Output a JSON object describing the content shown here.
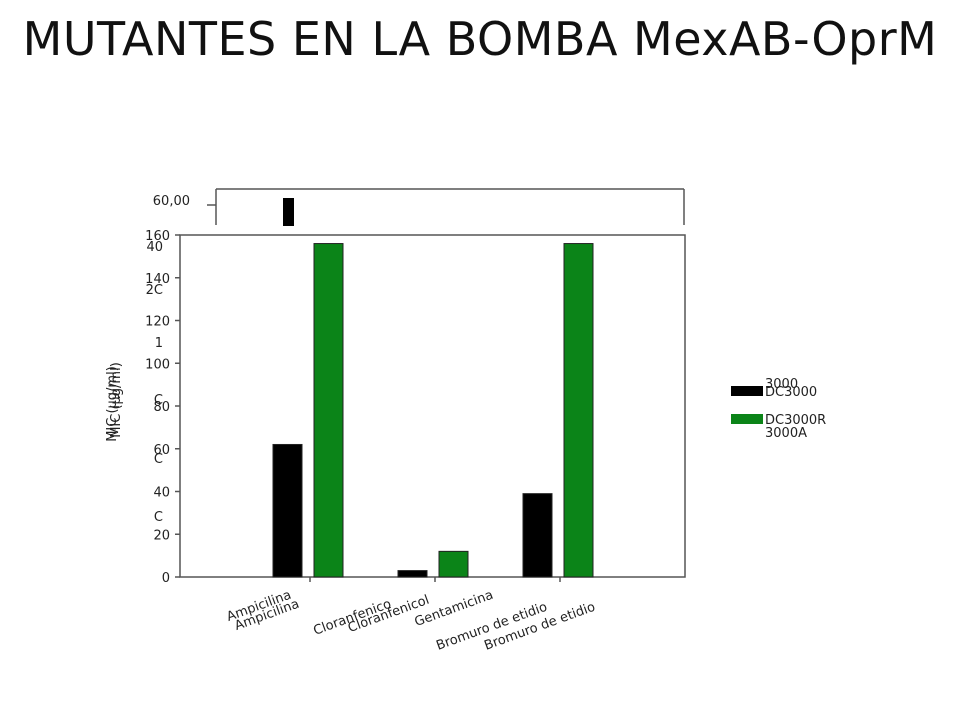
{
  "slide": {
    "title": "MUTANTES EN LA BOMBA MexAB-OprM"
  },
  "chart_data": {
    "type": "bar",
    "ylabel": "MIC (µg/ml)",
    "ylim": [
      0,
      160
    ],
    "yticks": [
      0,
      20,
      40,
      60,
      80,
      100,
      120,
      140,
      160
    ],
    "categories": [
      "Ampicilina",
      "Cloranfenicol",
      "Bromuro de etidio"
    ],
    "series": [
      {
        "name": "DC3000",
        "color": "#000000",
        "values": [
          62,
          3,
          39
        ]
      },
      {
        "name": "DC3000R",
        "color": "#0b8418",
        "values": [
          156,
          12,
          156
        ]
      }
    ],
    "legend_position": "right",
    "grid": false,
    "overlap_artifacts": {
      "inset_tick_label": "60,00",
      "ghost_y_labels": [
        "40",
        "2C",
        "1",
        "C",
        "C",
        "C"
      ],
      "ghost_ylabel": "MIC (µg/ml)",
      "ghost_categories": [
        "Ampicilina",
        "Cloranfenico",
        "Gentamicina",
        "Bromuro de etidio"
      ],
      "ghost_legend": [
        "3000",
        "3000A"
      ]
    }
  }
}
